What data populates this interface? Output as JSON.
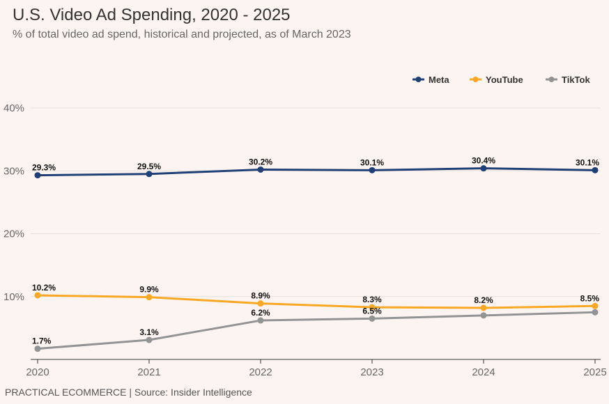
{
  "header": {
    "title": "U.S. Video Ad Spending, 2020 - 2025",
    "subtitle": "% of total video ad spend, historical and projected, as of March 2023"
  },
  "footer": {
    "source": "PRACTICAL ECOMMERCE | Source: Insider Intelligence"
  },
  "chart_data": {
    "type": "line",
    "x": [
      2020,
      2021,
      2022,
      2023,
      2024,
      2025
    ],
    "x_tick_labels": [
      "2020",
      "2021",
      "2022",
      "2023",
      "2024",
      "2025"
    ],
    "ylim": [
      0,
      40
    ],
    "y_ticks": [
      10,
      20,
      30,
      40
    ],
    "y_tick_labels": [
      "10%",
      "20%",
      "30%",
      "40%"
    ],
    "grid": true,
    "legend_position": "top-right",
    "series": [
      {
        "name": "Meta",
        "color": "#1f3f77",
        "values": [
          29.3,
          29.5,
          30.2,
          30.1,
          30.4,
          30.1
        ],
        "labels": [
          "29.3%",
          "29.5%",
          "30.2%",
          "30.1%",
          "30.4%",
          "30.1%"
        ]
      },
      {
        "name": "YouTube",
        "color": "#f9a825",
        "values": [
          10.2,
          9.9,
          8.9,
          8.3,
          8.2,
          8.5
        ],
        "labels": [
          "10.2%",
          "9.9%",
          "8.9%",
          "8.3%",
          "8.2%",
          "8.5%"
        ]
      },
      {
        "name": "TikTok",
        "color": "#939393",
        "values": [
          1.7,
          3.1,
          6.2,
          6.5,
          7.0,
          7.5
        ],
        "labels": [
          "1.7%",
          "3.1%",
          "6.2%",
          "6.5%",
          "",
          ""
        ]
      }
    ]
  }
}
